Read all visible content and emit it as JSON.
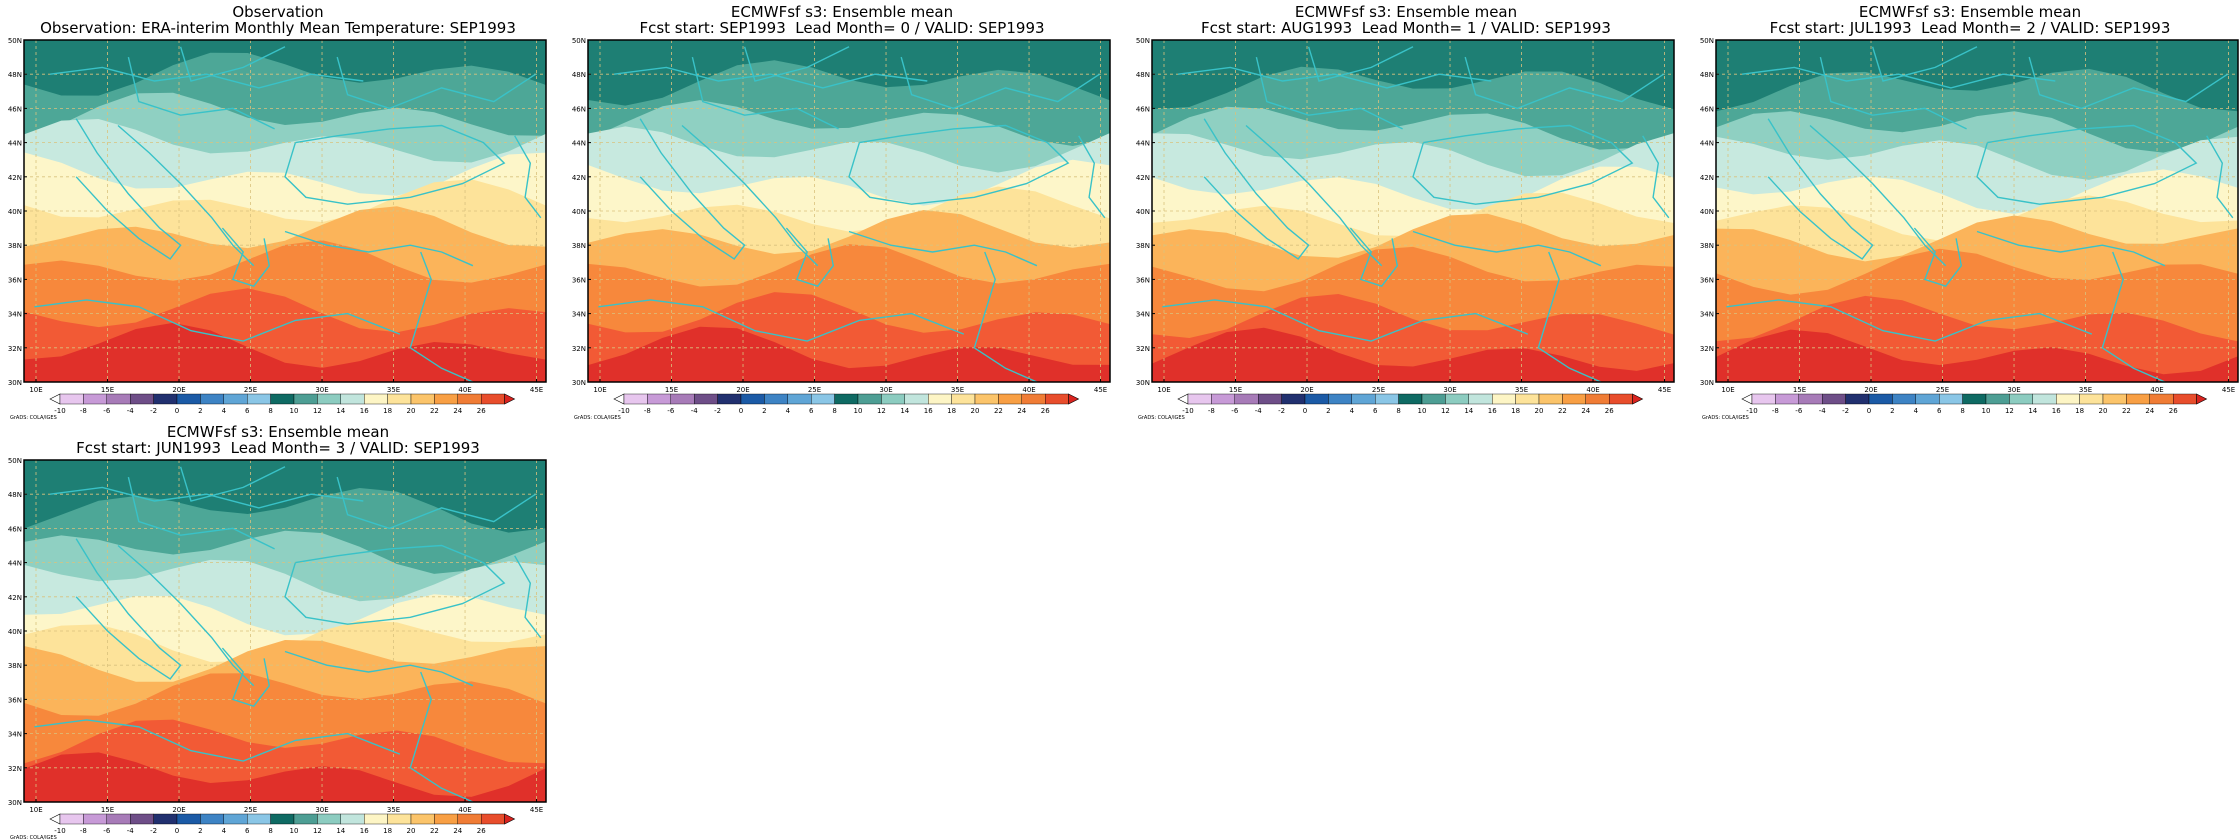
{
  "page": {
    "title": ""
  },
  "map_common": {
    "lat_labels": [
      "30N",
      "32N",
      "34N",
      "36N",
      "38N",
      "40N",
      "42N",
      "44N",
      "46N",
      "48N",
      "50N"
    ],
    "lon_labels": [
      "10E",
      "15E",
      "20E",
      "25E",
      "30E",
      "35E",
      "40E",
      "45E"
    ],
    "colorbar_labels": [
      "-10",
      "-8",
      "-6",
      "-4",
      "-2",
      "0",
      "2",
      "4",
      "6",
      "8",
      "10",
      "12",
      "14",
      "16",
      "18",
      "20",
      "22",
      "24",
      "26"
    ],
    "colorbar_colors": [
      "#ffffff",
      "#e7c6ee",
      "#c79ad7",
      "#a77bb8",
      "#6e4e88",
      "#21306f",
      "#1b5aa6",
      "#3d83c4",
      "#5fa5d6",
      "#8ac6e6",
      "#0e6a63",
      "#4d9e94",
      "#8cccc0",
      "#c1e5dd",
      "#fdf5c5",
      "#fde39a",
      "#fbc46a",
      "#f89f44",
      "#f07c35",
      "#e84d2c",
      "#d9231f"
    ],
    "grads_credit": "GrADS: COLA/IGES",
    "colors": {
      "coast": "#39c2c8",
      "border": "#39c2c8",
      "grid": "#d9c27e"
    }
  },
  "panels": [
    {
      "title1": "Observation",
      "title2": "Observation: ERA-interim Monthly Mean Temperature: SEP1993"
    },
    {
      "title1": "ECMWFsf s3: Ensemble mean",
      "title2": "Fcst start: SEP1993  Lead Month= 0 / VALID: SEP1993"
    },
    {
      "title1": "ECMWFsf s3: Ensemble mean",
      "title2": "Fcst start: AUG1993  Lead Month= 1 / VALID: SEP1993"
    },
    {
      "title1": "ECMWFsf s3: Ensemble mean",
      "title2": "Fcst start: JUL1993  Lead Month= 2 / VALID: SEP1993"
    },
    {
      "title1": "ECMWFsf s3: Ensemble mean",
      "title2": "Fcst start: JUN1993  Lead Month= 3 / VALID: SEP1993"
    }
  ]
}
